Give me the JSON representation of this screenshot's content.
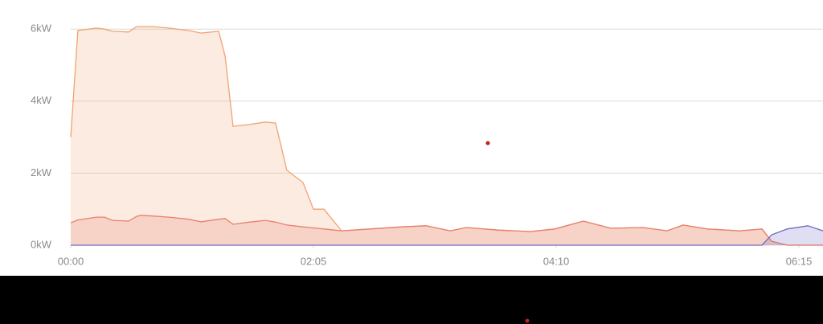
{
  "chart_data": {
    "type": "area",
    "x": [
      0,
      3.7,
      13.2,
      17.4,
      21.5,
      29.8,
      33.9,
      36,
      42.2,
      50.5,
      60.8,
      67,
      76.2,
      79.5,
      83.6,
      91.9,
      100.2,
      105.5,
      111.3,
      119.6,
      125,
      130.4,
      139.5,
      154,
      170.5,
      183,
      195.4,
      203.7,
      220.2,
      236.7,
      249.2,
      264,
      278.1,
      294.7,
      307.1,
      315.4,
      327.8,
      344.4,
      356,
      361,
      369,
      379.6,
      387.4
    ],
    "series": [
      {
        "color": "#f2a273",
        "values": [
          3.0,
          5.96,
          6.03,
          6.0,
          5.94,
          5.92,
          6.07,
          6.07,
          6.07,
          6.03,
          5.96,
          5.89,
          5.94,
          5.25,
          3.3,
          3.35,
          3.42,
          3.39,
          2.08,
          1.74,
          1.0,
          1.0,
          0.4,
          0.45,
          0.51,
          0.54,
          0.4,
          0.49,
          0.42,
          0.38,
          0.45,
          0.67,
          0.47,
          0.49,
          0.4,
          0.56,
          0.45,
          0.4,
          0.45,
          0.11,
          0,
          0,
          0
        ]
      },
      {
        "color": "#e8806c",
        "values": [
          0.62,
          0.7,
          0.78,
          0.78,
          0.69,
          0.67,
          0.8,
          0.83,
          0.81,
          0.78,
          0.72,
          0.65,
          0.72,
          0.74,
          0.58,
          0.64,
          0.69,
          0.64,
          0.56,
          0.51,
          0.48,
          0.45,
          0.4,
          0.45,
          0.51,
          0.54,
          0.4,
          0.49,
          0.42,
          0.38,
          0.45,
          0.67,
          0.47,
          0.49,
          0.4,
          0.56,
          0.45,
          0.4,
          0.45,
          0.11,
          0,
          0,
          0
        ]
      },
      {
        "color": "#7467c2",
        "values": [
          0,
          0,
          0,
          0,
          0,
          0,
          0,
          0,
          0,
          0,
          0,
          0,
          0,
          0,
          0,
          0,
          0,
          0,
          0,
          0,
          0,
          0,
          0,
          0,
          0,
          0,
          0,
          0,
          0,
          0,
          0,
          0,
          0,
          0,
          0,
          0,
          0,
          0,
          0,
          0.29,
          0.45,
          0.54,
          0.4
        ]
      }
    ],
    "xlim": [
      0,
      387.4
    ],
    "ylim": [
      0,
      6.6
    ],
    "xticks": [
      {
        "value": 0,
        "label": "00:00"
      },
      {
        "value": 125,
        "label": "02:05"
      },
      {
        "value": 250,
        "label": "04:10"
      },
      {
        "value": 375,
        "label": "06:15"
      }
    ],
    "yticks": [
      {
        "value": 0,
        "label": "0kW"
      },
      {
        "value": 2,
        "label": "2kW"
      },
      {
        "value": 4,
        "label": "4kW"
      },
      {
        "value": 6,
        "label": "6kW"
      }
    ],
    "grid": true
  }
}
